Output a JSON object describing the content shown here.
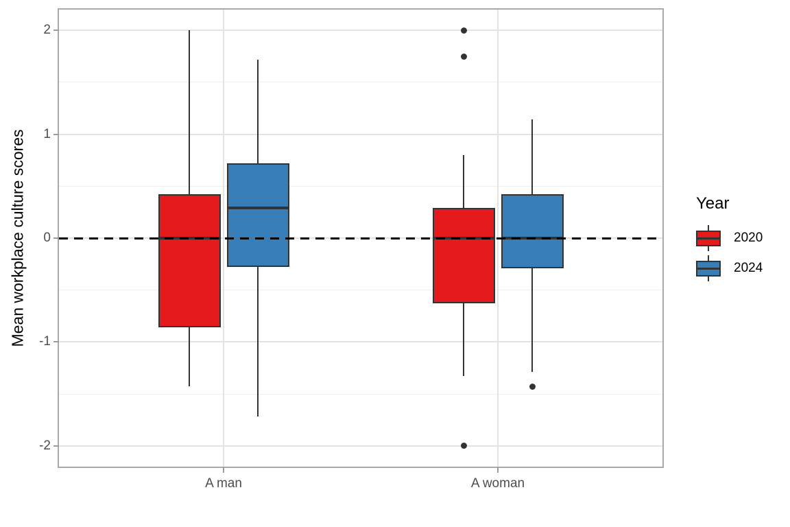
{
  "chart_data": {
    "type": "boxplot",
    "title": "",
    "xlabel": "",
    "ylabel": "Mean workplace culture scores",
    "categories": [
      "A man",
      "A woman"
    ],
    "y_ticks": [
      2,
      1,
      0,
      -1,
      -2
    ],
    "ylim": [
      -2.2,
      2.2
    ],
    "grid": {
      "major": [
        -2,
        -1,
        0,
        1,
        2
      ],
      "minor": [
        -1.5,
        -0.5,
        0.5,
        1.5
      ]
    },
    "reference_line": {
      "y": 0,
      "style": "dashed",
      "color": "#000000"
    },
    "legend": {
      "title": "Year",
      "position": "right",
      "entries": [
        {
          "label": "2020",
          "color": "#e41a1c"
        },
        {
          "label": "2024",
          "color": "#377eb8"
        }
      ]
    },
    "series": [
      {
        "name": "2020",
        "color": "#e41a1c",
        "boxes": [
          {
            "category": "A man",
            "whisker_low": -1.43,
            "q1": -0.86,
            "median": 0.0,
            "q3": 0.42,
            "whisker_high": 2.0,
            "outliers": []
          },
          {
            "category": "A woman",
            "whisker_low": -1.33,
            "q1": -0.63,
            "median": 0.0,
            "q3": 0.29,
            "whisker_high": 0.8,
            "outliers": [
              2.0,
              1.75,
              -2.0
            ]
          }
        ]
      },
      {
        "name": "2024",
        "color": "#377eb8",
        "boxes": [
          {
            "category": "A man",
            "whisker_low": -1.72,
            "q1": -0.28,
            "median": 0.29,
            "q3": 0.72,
            "whisker_high": 1.72,
            "outliers": []
          },
          {
            "category": "A woman",
            "whisker_low": -1.29,
            "q1": -0.29,
            "median": 0.0,
            "q3": 0.42,
            "whisker_high": 1.14,
            "outliers": [
              -1.43
            ]
          }
        ]
      }
    ]
  },
  "style": {
    "background": "#ffffff",
    "panel_border": "#a9a9a9",
    "grid_major": "#e3e3e3",
    "grid_minor": "#efefef",
    "axis_text": "#4d4d4d",
    "axis_title": "#000000",
    "tick_mark": "#9a9a9a",
    "box_stroke": "#333333",
    "outlier": "#333333"
  }
}
